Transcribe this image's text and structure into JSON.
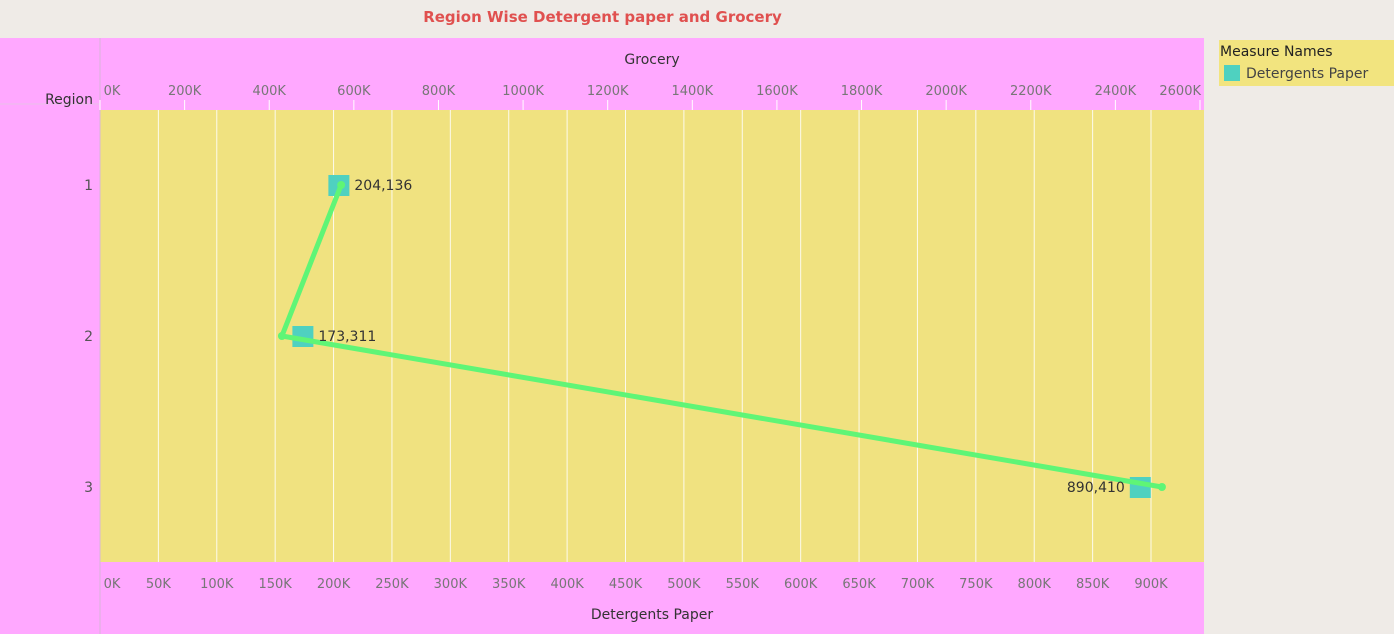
{
  "chart_data": {
    "type": "line",
    "title": "Region Wise Detergent paper and Grocery",
    "row_header": "Region",
    "categories": [
      "1",
      "2",
      "3"
    ],
    "x_top": {
      "label": "Grocery",
      "range": [
        0,
        2600000
      ],
      "ticks": [
        "0K",
        "200K",
        "400K",
        "600K",
        "800K",
        "1000K",
        "1200K",
        "1400K",
        "1600K",
        "1800K",
        "2000K",
        "2200K",
        "2400K",
        "2600K"
      ]
    },
    "x_bottom": {
      "label": "Detergents Paper",
      "range": [
        0,
        940000
      ],
      "ticks": [
        "0K",
        "50K",
        "100K",
        "150K",
        "200K",
        "250K",
        "300K",
        "350K",
        "400K",
        "450K",
        "500K",
        "550K",
        "600K",
        "650K",
        "700K",
        "750K",
        "800K",
        "850K",
        "900K"
      ]
    },
    "series": [
      {
        "name": "Detergents Paper",
        "mark": "square",
        "values": [
          204136,
          173311,
          890410
        ],
        "labels": [
          "204,136",
          "173,311",
          "890,410"
        ],
        "color": "#4fd1c0"
      },
      {
        "mark": "line",
        "axis": "Grocery",
        "values": [
          570000,
          430000,
          2510000
        ],
        "color": "#5ff576"
      }
    ],
    "grid": true,
    "legend_position": "right"
  },
  "legend": {
    "title": "Measure Names",
    "items": [
      {
        "label": "Detergents Paper",
        "color": "#4fd1c0"
      }
    ]
  },
  "colors": {
    "title": "#e0504f",
    "header_band": "#ffa8ff",
    "plot_bg": "#f0e280",
    "legend_bg": "#f2e47f",
    "page_bg": "#efebe7",
    "grid": "#ffffff"
  }
}
